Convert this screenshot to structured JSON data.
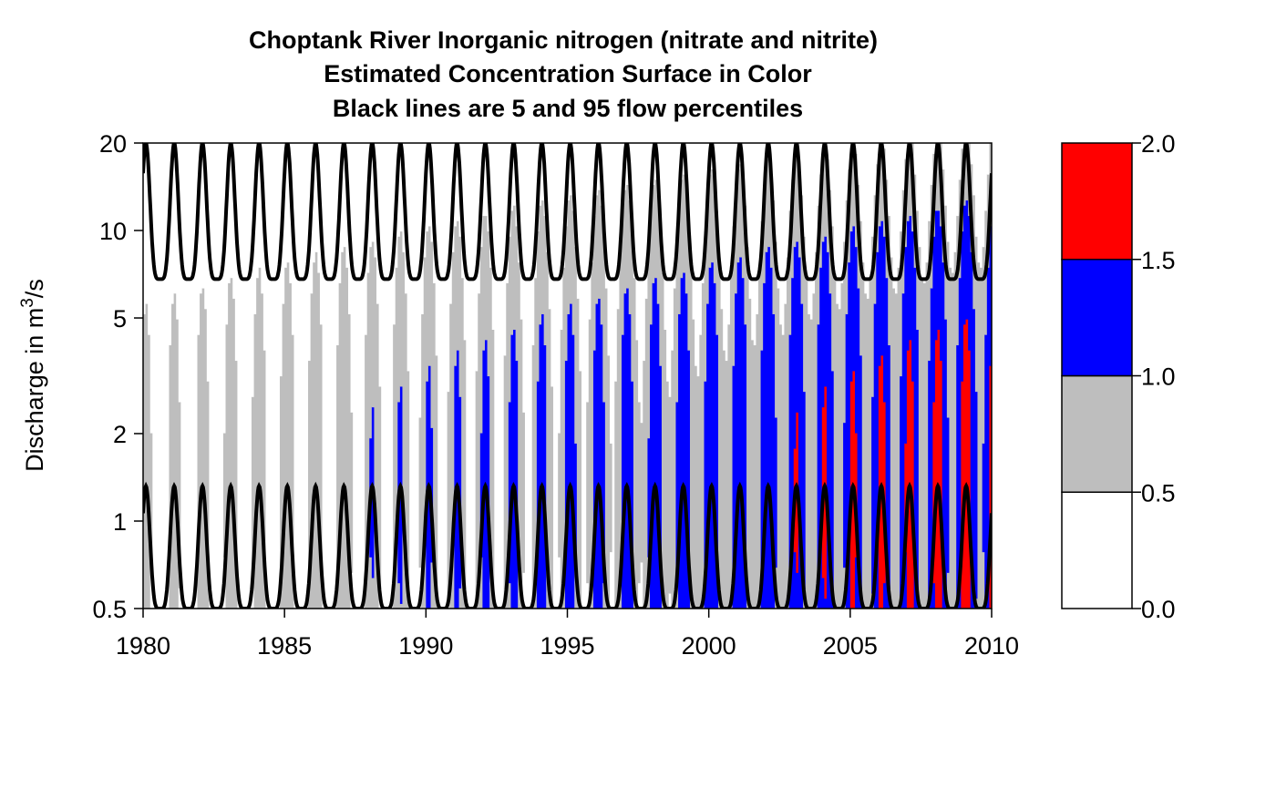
{
  "chart_data": {
    "type": "heatmap",
    "title_lines": [
      "Choptank River    Inorganic nitrogen (nitrate and nitrite)",
      "Estimated Concentration Surface in Color",
      "Black lines are 5 and 95 flow percentiles"
    ],
    "xlabel": "",
    "ylabel_prefix": "Discharge in m",
    "ylabel_sup": "3",
    "ylabel_suffix": "/s",
    "xlim": [
      1980,
      2010
    ],
    "ylim": [
      0.5,
      20
    ],
    "y_scale": "log",
    "x_ticks": [
      1980,
      1985,
      1990,
      1995,
      2000,
      2005,
      2010
    ],
    "x_tick_labels": [
      "1980",
      "1985",
      "1990",
      "1995",
      "2000",
      "2005",
      "2010"
    ],
    "y_ticks": [
      0.5,
      1,
      2,
      5,
      10,
      20
    ],
    "y_tick_labels": [
      "0.5",
      "1",
      "2",
      "5",
      "10",
      "20"
    ],
    "colorbar": {
      "levels": [
        0.0,
        0.5,
        1.0,
        1.5,
        2.0
      ],
      "level_labels": [
        "0.0",
        "0.5",
        "1.0",
        "1.5",
        "2.0"
      ],
      "colors": [
        "#FFFFFF",
        "#BEBEBE",
        "#0000FF",
        "#FF0000"
      ]
    },
    "flow_percentile_lines": {
      "p95": {
        "peak": 20,
        "trough": 6.8
      },
      "p5": {
        "peak": 1.32,
        "trough": 0.5
      },
      "cycle_length_years": 1
    }
  }
}
